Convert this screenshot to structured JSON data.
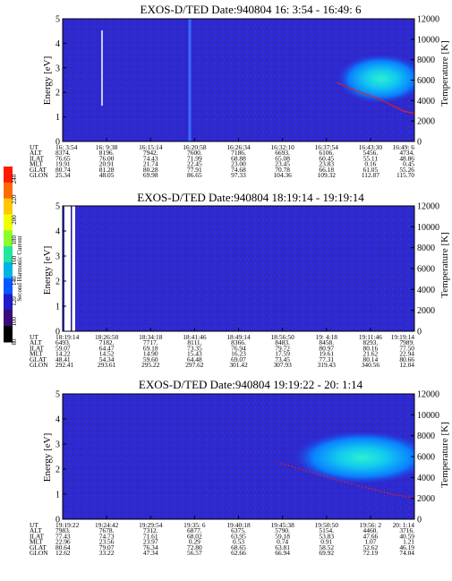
{
  "colorbar": {
    "label": "Second Harmonic Current",
    "ticks": [
      "240",
      "220",
      "200",
      "180",
      "160",
      "140",
      "120",
      "100",
      "80"
    ],
    "colors": [
      "#ff1a00",
      "#ff6a00",
      "#ffc800",
      "#f0ff00",
      "#8cff2a",
      "#22e6a0",
      "#00b4e6",
      "#0058ff",
      "#1c1cc8",
      "#3a0a78",
      "#000000"
    ]
  },
  "chart_data": [
    {
      "type": "heatmap",
      "title": "EXOS-D/TED   Date:940804  16: 3:54 - 16:49: 6",
      "ylabel": "Energy [eV]",
      "y2label": "Temperature [K]",
      "ylim": [
        0,
        5
      ],
      "y2lim": [
        0,
        12000
      ],
      "yticks": [
        "0",
        "1",
        "2",
        "3",
        "4",
        "5"
      ],
      "y2ticks": [
        "0",
        "2000",
        "4000",
        "6000",
        "8000",
        "10000",
        "12000"
      ],
      "rows": [
        {
          "label": "UT",
          "values": [
            "16: 3:54",
            "16: 9:38",
            "16:15:14",
            "16:20:58",
            "16:26:34",
            "16:32:10",
            "16:37:54",
            "16:43:30",
            "16:49: 6"
          ]
        },
        {
          "label": "ALT",
          "values": [
            "8374.",
            "8196.",
            "7942.",
            "7600.",
            "7186.",
            "6693.",
            "6106.",
            "5456.",
            "4734."
          ]
        },
        {
          "label": "ILAT",
          "values": [
            "76.65",
            "76.00",
            "74.43",
            "71.99",
            "68.88",
            "65.08",
            "60.45",
            "55.11",
            "48.86"
          ]
        },
        {
          "label": "MLT",
          "values": [
            "19.91",
            "20.91",
            "21.74",
            "22.45",
            "23.00",
            "23.45",
            "23.83",
            "0.16",
            "0.45"
          ]
        },
        {
          "label": "GLAT",
          "values": [
            "80.74",
            "81.28",
            "80.28",
            "77.91",
            "74.68",
            "70.78",
            "66.18",
            "61.05",
            "55.26"
          ]
        },
        {
          "label": "GLON",
          "values": [
            "25.34",
            "48.05",
            "69.98",
            "86.65",
            "97.33",
            "104.36",
            "109.32",
            "112.87",
            "115.70"
          ]
        }
      ],
      "temperature_curve": {
        "x_frac": [
          0.78,
          0.82,
          0.86,
          0.9,
          0.94,
          0.97,
          1.0
        ],
        "y_kelvin": [
          5800,
          5200,
          4700,
          4200,
          3500,
          3000,
          2800
        ]
      },
      "features": [
        {
          "kind": "enhanced-band",
          "x_frac": [
            0.8,
            1.0
          ],
          "energy_eV": [
            1.7,
            3.3
          ]
        }
      ]
    },
    {
      "type": "heatmap",
      "title": "EXOS-D/TED   Date:940804  18:19:14 - 19:19:14",
      "ylabel": "Energy [eV]",
      "y2label": "Temperature [K]",
      "ylim": [
        0,
        5
      ],
      "y2lim": [
        0,
        12000
      ],
      "yticks": [
        "0",
        "1",
        "2",
        "3",
        "4",
        "5"
      ],
      "y2ticks": [
        "0",
        "2000",
        "4000",
        "6000",
        "8000",
        "10000",
        "12000"
      ],
      "rows": [
        {
          "label": "UT",
          "values": [
            "18:19:14",
            "18:26:50",
            "18:34:18",
            "18:41:46",
            "18:49:14",
            "18:56:50",
            "19: 4:18",
            "19:11:46",
            "19:19:14"
          ]
        },
        {
          "label": "ALT",
          "values": [
            "6493.",
            "7182.",
            "7717.",
            "8111.",
            "8366.",
            "8483.",
            "8458.",
            "8293.",
            "7989."
          ]
        },
        {
          "label": "ILAT",
          "values": [
            "59.07",
            "64.47",
            "69.18",
            "73.35",
            "76.94",
            "79.72",
            "80.97",
            "80.16",
            "77.50"
          ]
        },
        {
          "label": "MLT",
          "values": [
            "14.22",
            "14.52",
            "14.90",
            "15.43",
            "16.23",
            "17.59",
            "19.61",
            "21.62",
            "22.94"
          ]
        },
        {
          "label": "GLAT",
          "values": [
            "48.41",
            "54.34",
            "59.60",
            "64.48",
            "69.07",
            "73.45",
            "77.31",
            "80.14",
            "80.66"
          ]
        },
        {
          "label": "GLON",
          "values": [
            "292.41",
            "293.61",
            "295.22",
            "297.62",
            "301.42",
            "307.93",
            "319.43",
            "340.56",
            "12.04"
          ]
        }
      ],
      "features": [
        {
          "kind": "data-gap",
          "x_frac": [
            0.0,
            0.03
          ]
        }
      ]
    },
    {
      "type": "heatmap",
      "title": "EXOS-D/TED   Date:940804  19:19:22 - 20: 1:14",
      "ylabel": "Energy [eV]",
      "y2label": "Temperature [K]",
      "ylim": [
        0,
        5
      ],
      "y2lim": [
        0,
        12000
      ],
      "yticks": [
        "0",
        "1",
        "2",
        "3",
        "4",
        "5"
      ],
      "y2ticks": [
        "0",
        "2000",
        "4000",
        "6000",
        "8000",
        "10000",
        "12000"
      ],
      "rows": [
        {
          "label": "UT",
          "values": [
            "19:19:22",
            "19:24:42",
            "19:29:54",
            "19:35: 6",
            "19:40:18",
            "19:45:38",
            "19:50:50",
            "19:56: 2",
            "20: 1:14"
          ]
        },
        {
          "label": "ALT",
          "values": [
            "7983.",
            "7678.",
            "7312.",
            "6877.",
            "6375.",
            "5790.",
            "5154.",
            "4460.",
            "3716."
          ]
        },
        {
          "label": "ILAT",
          "values": [
            "77.43",
            "74.73",
            "71.61",
            "68.02",
            "63.95",
            "59.18",
            "53.83",
            "47.66",
            "40.59"
          ]
        },
        {
          "label": "MLT",
          "values": [
            "22.96",
            "23.56",
            "23.97",
            "0.29",
            "0.53",
            "0.74",
            "0.91",
            "1.07",
            "1.21"
          ]
        },
        {
          "label": "GLAT",
          "values": [
            "80.64",
            "79.07",
            "76.34",
            "72.80",
            "68.65",
            "63.81",
            "58.52",
            "52.62",
            "46.19"
          ]
        },
        {
          "label": "GLON",
          "values": [
            "12.62",
            "33.22",
            "47.34",
            "56.57",
            "62.66",
            "66.94",
            "69.92",
            "72.19",
            "74.04"
          ]
        }
      ],
      "temperature_curve": {
        "x_frac": [
          0.62,
          0.7,
          0.78,
          0.86,
          0.93,
          1.0
        ],
        "y_kelvin": [
          5400,
          4600,
          3800,
          3100,
          2500,
          2100
        ]
      },
      "features": [
        {
          "kind": "enhanced-band",
          "x_frac": [
            0.63,
            1.0
          ],
          "energy_eV": [
            1.8,
            3.4
          ]
        }
      ]
    }
  ]
}
